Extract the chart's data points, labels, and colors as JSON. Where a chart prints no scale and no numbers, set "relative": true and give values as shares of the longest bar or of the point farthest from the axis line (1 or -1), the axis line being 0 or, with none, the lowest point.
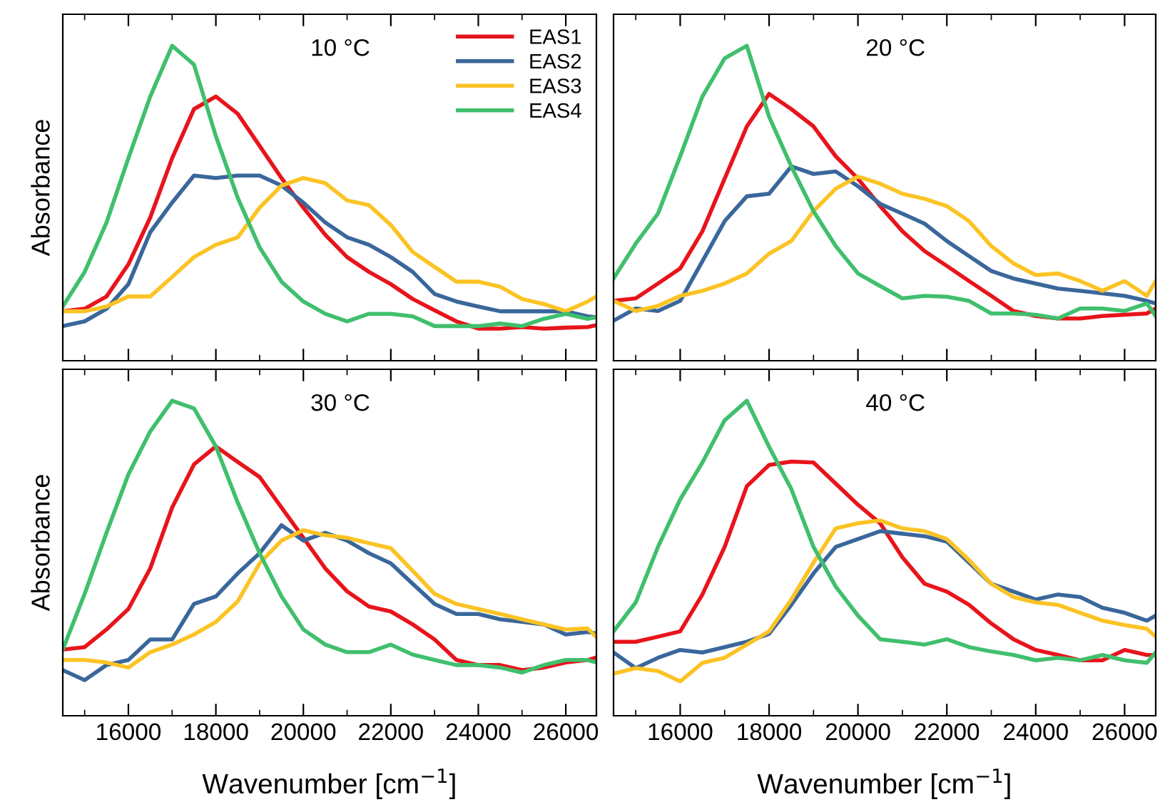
{
  "chart_data": [
    {
      "type": "line",
      "relative": true,
      "ylabel": "Absorbance",
      "annotations": [
        "10 °C"
      ],
      "legend": "top right",
      "tick_labels": false,
      "grid": false,
      "xlim": [
        14500,
        26700
      ],
      "xticks": [
        16000,
        18000,
        20000,
        22000,
        24000,
        26000
      ],
      "x": [
        14500,
        15000,
        15500,
        16000,
        16500,
        17000,
        17500,
        18000,
        18500,
        19000,
        19500,
        20000,
        20500,
        21000,
        21500,
        22000,
        22500,
        23000,
        23500,
        24000,
        24500,
        25000,
        25500,
        26000,
        26500,
        26700
      ],
      "series": [
        {
          "name": "EAS1",
          "color": "#e8141b",
          "values": [
            0.157,
            0.165,
            0.204,
            0.306,
            0.455,
            0.643,
            0.799,
            0.839,
            0.784,
            0.682,
            0.58,
            0.486,
            0.4,
            0.329,
            0.282,
            0.243,
            0.196,
            0.16,
            0.125,
            0.102,
            0.102,
            0.107,
            0.102,
            0.105,
            0.107,
            0.113
          ]
        },
        {
          "name": "EAS2",
          "color": "#3a679b",
          "values": [
            0.11,
            0.125,
            0.165,
            0.243,
            0.408,
            0.502,
            0.588,
            0.58,
            0.588,
            0.588,
            0.556,
            0.502,
            0.439,
            0.392,
            0.368,
            0.329,
            0.282,
            0.212,
            0.188,
            0.172,
            0.157,
            0.157,
            0.157,
            0.157,
            0.141,
            0.138
          ]
        },
        {
          "name": "EAS3",
          "color": "#fbc324",
          "values": [
            0.157,
            0.157,
            0.172,
            0.204,
            0.204,
            0.266,
            0.329,
            0.368,
            0.392,
            0.486,
            0.556,
            0.58,
            0.564,
            0.509,
            0.494,
            0.431,
            0.345,
            0.298,
            0.251,
            0.251,
            0.235,
            0.196,
            0.18,
            0.157,
            0.188,
            0.204
          ]
        },
        {
          "name": "EAS4",
          "color": "#40bf6d",
          "values": [
            0.172,
            0.282,
            0.439,
            0.643,
            0.839,
            1.0,
            0.94,
            0.713,
            0.517,
            0.36,
            0.251,
            0.188,
            0.149,
            0.125,
            0.149,
            0.149,
            0.141,
            0.11,
            0.11,
            0.11,
            0.118,
            0.11,
            0.133,
            0.149,
            0.133,
            0.138
          ]
        }
      ]
    },
    {
      "type": "line",
      "relative": true,
      "annotations": [
        "20 °C"
      ],
      "tick_labels": false,
      "grid": false,
      "xlim": [
        14500,
        26700
      ],
      "xticks": [
        16000,
        18000,
        20000,
        22000,
        24000,
        26000
      ],
      "x": [
        14500,
        15000,
        15500,
        16000,
        16500,
        17000,
        17500,
        18000,
        18500,
        19000,
        19500,
        20000,
        20500,
        21000,
        21500,
        22000,
        22500,
        23000,
        23500,
        24000,
        24500,
        25000,
        25500,
        26000,
        26500,
        26700
      ],
      "series": [
        {
          "color": "#e8141b",
          "values": [
            0.19,
            0.198,
            0.245,
            0.293,
            0.411,
            0.578,
            0.744,
            0.847,
            0.799,
            0.744,
            0.649,
            0.578,
            0.491,
            0.411,
            0.348,
            0.301,
            0.253,
            0.206,
            0.158,
            0.142,
            0.134,
            0.134,
            0.142,
            0.146,
            0.15,
            0.166
          ]
        },
        {
          "color": "#3a679b",
          "values": [
            0.127,
            0.166,
            0.158,
            0.19,
            0.316,
            0.443,
            0.522,
            0.53,
            0.617,
            0.593,
            0.601,
            0.554,
            0.498,
            0.467,
            0.435,
            0.38,
            0.332,
            0.285,
            0.261,
            0.245,
            0.229,
            0.222,
            0.214,
            0.206,
            0.19,
            0.182
          ]
        },
        {
          "color": "#fbc324",
          "values": [
            0.19,
            0.158,
            0.174,
            0.206,
            0.222,
            0.245,
            0.277,
            0.34,
            0.38,
            0.475,
            0.546,
            0.585,
            0.562,
            0.53,
            0.514,
            0.491,
            0.443,
            0.364,
            0.309,
            0.272,
            0.277,
            0.253,
            0.222,
            0.253,
            0.206,
            0.253
          ]
        },
        {
          "color": "#40bf6d",
          "values": [
            0.261,
            0.372,
            0.467,
            0.649,
            0.839,
            0.96,
            1.0,
            0.775,
            0.617,
            0.475,
            0.364,
            0.277,
            0.237,
            0.198,
            0.206,
            0.203,
            0.19,
            0.15,
            0.15,
            0.146,
            0.134,
            0.166,
            0.166,
            0.158,
            0.182,
            0.142
          ]
        }
      ]
    },
    {
      "type": "line",
      "relative": true,
      "ylabel": "Absorbance",
      "xlabel": "Wavenumber [cm$^{−1}$]",
      "annotations": [
        "30 °C"
      ],
      "tick_labels": "x",
      "grid": false,
      "xlim": [
        14500,
        26700
      ],
      "xticks": [
        16000,
        18000,
        20000,
        22000,
        24000,
        26000
      ],
      "x": [
        14500,
        15000,
        15500,
        16000,
        16500,
        17000,
        17500,
        18000,
        18500,
        19000,
        19500,
        20000,
        20500,
        21000,
        21500,
        22000,
        22500,
        23000,
        23500,
        24000,
        24500,
        25000,
        25500,
        26000,
        26500,
        26700
      ],
      "series": [
        {
          "color": "#e8141b",
          "values": [
            0.21,
            0.218,
            0.274,
            0.339,
            0.468,
            0.661,
            0.798,
            0.855,
            0.806,
            0.758,
            0.661,
            0.565,
            0.468,
            0.395,
            0.347,
            0.331,
            0.29,
            0.242,
            0.177,
            0.161,
            0.161,
            0.145,
            0.153,
            0.169,
            0.177,
            0.185
          ]
        },
        {
          "color": "#3a679b",
          "values": [
            0.145,
            0.113,
            0.161,
            0.177,
            0.242,
            0.242,
            0.355,
            0.379,
            0.452,
            0.516,
            0.605,
            0.556,
            0.581,
            0.556,
            0.516,
            0.484,
            0.419,
            0.355,
            0.323,
            0.323,
            0.306,
            0.298,
            0.29,
            0.258,
            0.266,
            0.261
          ]
        },
        {
          "color": "#fbc324",
          "values": [
            0.177,
            0.177,
            0.169,
            0.153,
            0.202,
            0.226,
            0.258,
            0.298,
            0.363,
            0.484,
            0.556,
            0.589,
            0.573,
            0.565,
            0.548,
            0.532,
            0.46,
            0.387,
            0.355,
            0.339,
            0.323,
            0.306,
            0.29,
            0.274,
            0.277,
            0.25
          ]
        },
        {
          "color": "#40bf6d",
          "values": [
            0.21,
            0.387,
            0.581,
            0.766,
            0.903,
            1.0,
            0.976,
            0.855,
            0.677,
            0.516,
            0.379,
            0.274,
            0.226,
            0.202,
            0.202,
            0.226,
            0.194,
            0.177,
            0.161,
            0.161,
            0.153,
            0.137,
            0.161,
            0.177,
            0.177,
            0.169
          ]
        }
      ]
    },
    {
      "type": "line",
      "relative": true,
      "xlabel": "Wavenumber [cm$^{−1}$]",
      "annotations": [
        "40 °C"
      ],
      "tick_labels": "x",
      "grid": false,
      "xlim": [
        14500,
        26700
      ],
      "xticks": [
        16000,
        18000,
        20000,
        22000,
        24000,
        26000
      ],
      "x": [
        14500,
        15000,
        15500,
        16000,
        16500,
        17000,
        17500,
        18000,
        18500,
        19000,
        19500,
        20000,
        20500,
        21000,
        21500,
        22000,
        22500,
        23000,
        23500,
        24000,
        24500,
        25000,
        25500,
        26000,
        26500,
        26700
      ],
      "series": [
        {
          "color": "#e8141b",
          "values": [
            0.235,
            0.235,
            0.251,
            0.268,
            0.385,
            0.536,
            0.729,
            0.796,
            0.807,
            0.804,
            0.737,
            0.67,
            0.611,
            0.503,
            0.419,
            0.394,
            0.352,
            0.293,
            0.243,
            0.209,
            0.193,
            0.176,
            0.176,
            0.209,
            0.193,
            0.193
          ]
        },
        {
          "color": "#3a679b",
          "values": [
            0.201,
            0.151,
            0.184,
            0.209,
            0.201,
            0.218,
            0.235,
            0.26,
            0.352,
            0.452,
            0.536,
            0.561,
            0.586,
            0.578,
            0.57,
            0.553,
            0.486,
            0.419,
            0.394,
            0.369,
            0.385,
            0.377,
            0.343,
            0.327,
            0.302,
            0.318
          ]
        },
        {
          "color": "#fbc324",
          "values": [
            0.134,
            0.151,
            0.142,
            0.109,
            0.168,
            0.184,
            0.226,
            0.268,
            0.369,
            0.486,
            0.595,
            0.611,
            0.62,
            0.595,
            0.586,
            0.561,
            0.494,
            0.419,
            0.377,
            0.36,
            0.352,
            0.327,
            0.302,
            0.288,
            0.276,
            0.251
          ]
        },
        {
          "color": "#40bf6d",
          "values": [
            0.268,
            0.36,
            0.536,
            0.687,
            0.804,
            0.938,
            1.0,
            0.854,
            0.72,
            0.536,
            0.41,
            0.318,
            0.243,
            0.235,
            0.226,
            0.243,
            0.218,
            0.204,
            0.193,
            0.176,
            0.184,
            0.176,
            0.193,
            0.176,
            0.168,
            0.201
          ]
        }
      ]
    }
  ]
}
